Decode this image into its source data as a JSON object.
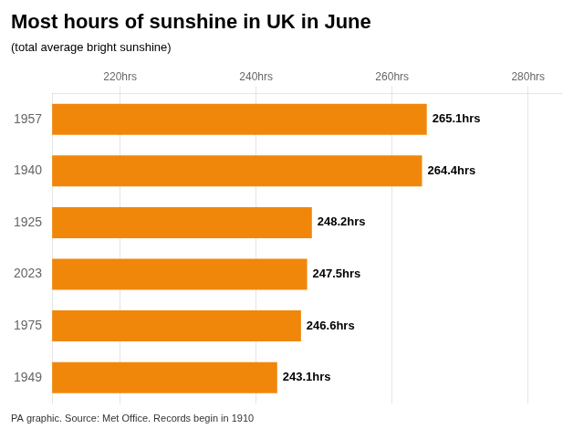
{
  "chart_data": {
    "type": "bar",
    "orientation": "horizontal",
    "title": "Most hours of sunshine in UK in June",
    "subtitle": "(total average bright sunshine)",
    "footnote": "PA graphic. Source: Met Office. Records begin in 1910",
    "categories": [
      "1957",
      "1940",
      "1925",
      "2023",
      "1975",
      "1949"
    ],
    "values": [
      265.1,
      264.4,
      248.2,
      247.5,
      246.6,
      243.1
    ],
    "value_labels": [
      "265.1hrs",
      "264.4hrs",
      "248.2hrs",
      "247.5hrs",
      "246.6hrs",
      "243.1hrs"
    ],
    "data_labels": true,
    "color": "#f0870a",
    "xlim": [
      210,
      285
    ],
    "xticks": [
      {
        "value": 220,
        "label": "220hrs"
      },
      {
        "value": 240,
        "label": "240hrs"
      },
      {
        "value": 260,
        "label": "260hrs"
      },
      {
        "value": 280,
        "label": "280hrs"
      }
    ],
    "grid": true
  }
}
